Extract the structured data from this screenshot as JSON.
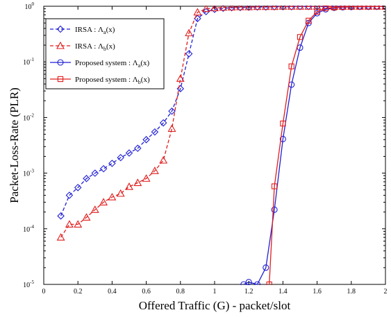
{
  "chart_data": {
    "type": "line",
    "title": "",
    "xlabel": "Offered Traffic (G) - packet/slot",
    "ylabel": "Packet-Loss-Rate (PLR)",
    "xlim": [
      0,
      2
    ],
    "ylim": [
      1e-05,
      1
    ],
    "y_scale": "log",
    "grid": false,
    "legend_position": "top-left",
    "x_ticks": [
      "0",
      "0.2",
      "0.4",
      "0.6",
      "0.8",
      "1",
      "1.2",
      "1.4",
      "1.6",
      "1.8",
      "2"
    ],
    "y_ticks": [
      {
        "base": "10",
        "exp": "-5"
      },
      {
        "base": "10",
        "exp": "-4"
      },
      {
        "base": "10",
        "exp": "-3"
      },
      {
        "base": "10",
        "exp": "-2"
      },
      {
        "base": "10",
        "exp": "-1"
      },
      {
        "base": "10",
        "exp": "0"
      }
    ],
    "series": [
      {
        "name": "IRSA : Λa(x)",
        "legend_prefix": "IRSA : Λ",
        "legend_sub": "a",
        "legend_suffix": "(x)",
        "color": "#1f1fd6",
        "dash": "dashed",
        "marker": "diamond",
        "x": [
          0.1,
          0.15,
          0.2,
          0.25,
          0.3,
          0.35,
          0.4,
          0.45,
          0.5,
          0.55,
          0.6,
          0.65,
          0.7,
          0.75,
          0.8,
          0.85,
          0.9,
          0.95,
          1.0,
          1.05,
          1.1,
          1.15,
          1.2,
          1.25,
          1.3,
          1.35,
          1.4,
          1.45,
          1.5,
          1.55,
          1.6,
          1.65,
          1.7,
          1.75,
          1.8,
          1.85,
          1.9,
          1.95,
          2.0
        ],
        "y": [
          0.00017,
          0.0004,
          0.00055,
          0.0008,
          0.001,
          0.0012,
          0.0015,
          0.0019,
          0.0023,
          0.0028,
          0.004,
          0.0055,
          0.008,
          0.013,
          0.033,
          0.14,
          0.6,
          0.8,
          0.88,
          0.92,
          0.94,
          0.95,
          0.96,
          0.97,
          0.97,
          0.98,
          0.98,
          0.98,
          0.99,
          0.99,
          0.99,
          0.99,
          0.99,
          0.99,
          0.99,
          0.99,
          0.99,
          0.99,
          0.99
        ]
      },
      {
        "name": "IRSA : Λb(x)",
        "legend_prefix": "IRSA : Λ",
        "legend_sub": "b",
        "legend_suffix": "(x)",
        "color": "#e01c1c",
        "dash": "dashed",
        "marker": "triangle",
        "x": [
          0.1,
          0.15,
          0.2,
          0.25,
          0.3,
          0.35,
          0.4,
          0.45,
          0.5,
          0.55,
          0.6,
          0.65,
          0.7,
          0.75,
          0.8,
          0.85,
          0.9,
          0.95,
          1.0,
          1.05,
          1.1,
          1.15,
          1.2,
          1.25,
          1.3,
          1.35,
          1.4,
          1.45,
          1.5,
          1.55,
          1.6,
          1.65,
          1.7,
          1.75,
          1.8,
          1.85,
          1.9,
          1.95,
          2.0
        ],
        "y": [
          7e-05,
          0.00012,
          0.00012,
          0.00016,
          0.00022,
          0.0003,
          0.00037,
          0.00043,
          0.00057,
          0.00067,
          0.0008,
          0.0011,
          0.0017,
          0.0063,
          0.05,
          0.33,
          0.78,
          0.9,
          0.93,
          0.95,
          0.96,
          0.97,
          0.97,
          0.98,
          0.98,
          0.98,
          0.99,
          0.99,
          0.99,
          0.99,
          0.99,
          0.99,
          0.99,
          0.99,
          0.99,
          0.99,
          0.99,
          0.99,
          0.99
        ]
      },
      {
        "name": "Proposed system : Λa(x)",
        "legend_prefix": "Proposed system : Λ",
        "legend_sub": "a",
        "legend_suffix": "(x)",
        "color": "#1f1fd6",
        "dash": "solid",
        "marker": "circle",
        "x": [
          1.17,
          1.2,
          1.25,
          1.3,
          1.35,
          1.4,
          1.45,
          1.5,
          1.55,
          1.6,
          1.65,
          1.7,
          1.75,
          1.8,
          1.85,
          1.9,
          1.95,
          2.0
        ],
        "y": [
          1e-05,
          1.1e-05,
          1e-05,
          2e-05,
          0.00022,
          0.0041,
          0.039,
          0.18,
          0.5,
          0.75,
          0.88,
          0.94,
          0.96,
          0.97,
          0.98,
          0.98,
          0.99,
          0.99
        ]
      },
      {
        "name": "Proposed system : Λb(x)",
        "legend_prefix": "Proposed system : Λ",
        "legend_sub": "b",
        "legend_suffix": "(x)",
        "color": "#e01c1c",
        "dash": "solid",
        "marker": "square",
        "x": [
          1.32,
          1.35,
          1.4,
          1.45,
          1.5,
          1.55,
          1.6,
          1.65,
          1.7,
          1.75,
          1.8,
          1.85,
          1.9,
          1.95,
          2.0
        ],
        "y": [
          1e-05,
          0.00058,
          0.0078,
          0.083,
          0.28,
          0.55,
          0.8,
          0.92,
          0.95,
          0.97,
          0.98,
          0.98,
          0.99,
          0.99,
          0.99
        ]
      }
    ]
  }
}
